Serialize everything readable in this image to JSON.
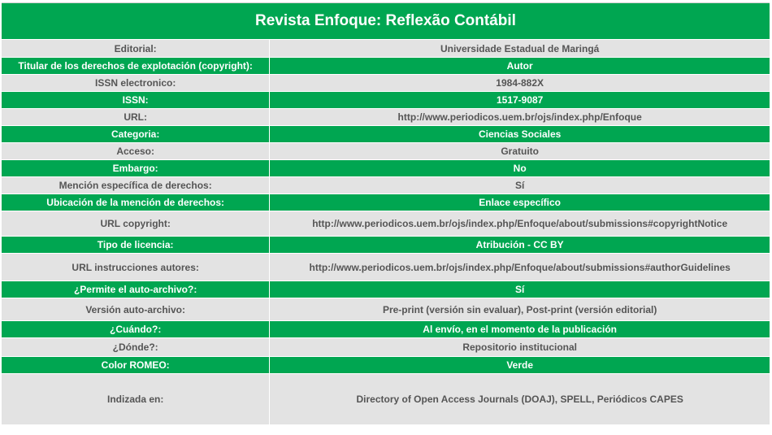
{
  "title": "Revista Enfoque: Reflexão Contábil",
  "rows": [
    {
      "label": "Editorial:",
      "value": "Universidade Estadual de Maringá"
    },
    {
      "label": "Titular de los derechos de explotación (copyright):",
      "value": "Autor"
    },
    {
      "label": "ISSN electronico:",
      "value": "1984-882X"
    },
    {
      "label": "ISSN:",
      "value": "1517-9087"
    },
    {
      "label": "URL:",
      "value": "http://www.periodicos.uem.br/ojs/index.php/Enfoque"
    },
    {
      "label": "Categoria:",
      "value": "Ciencias Sociales"
    },
    {
      "label": "Acceso:",
      "value": "Gratuito"
    },
    {
      "label": "Embargo:",
      "value": "No"
    },
    {
      "label": "Mención específica de derechos:",
      "value": "Sí"
    },
    {
      "label": "Ubicación de la mención de derechos:",
      "value": "Enlace específico"
    },
    {
      "label": "URL copyright:",
      "value": "http://www.periodicos.uem.br/ojs/index.php/Enfoque/about/submissions#copyrightNotice"
    },
    {
      "label": "Tipo de licencia:",
      "value": "Atribución - CC BY"
    },
    {
      "label": "URL instrucciones autores:",
      "value": "http://www.periodicos.uem.br/ojs/index.php/Enfoque/about/submissions#authorGuidelines"
    },
    {
      "label": "¿Permite el auto-archivo?:",
      "value": "Sí"
    },
    {
      "label": "Versión auto-archivo:",
      "value": "Pre-print (versión sin evaluar), Post-print (versión editorial)"
    },
    {
      "label": "¿Cuándo?:",
      "value": "Al envío, en el momento de la publicación"
    },
    {
      "label": "¿Dónde?:",
      "value": "Repositorio institucional"
    },
    {
      "label": "Color ROMEO:",
      "value": "Verde"
    },
    {
      "label": "Indizada en:",
      "value": "Directory of Open Access Journals (DOAJ), SPELL, Periódicos CAPES"
    }
  ],
  "colors": {
    "accent_green": "#00a651",
    "row_gray": "#e3e3e3",
    "text_gray": "#555555"
  }
}
